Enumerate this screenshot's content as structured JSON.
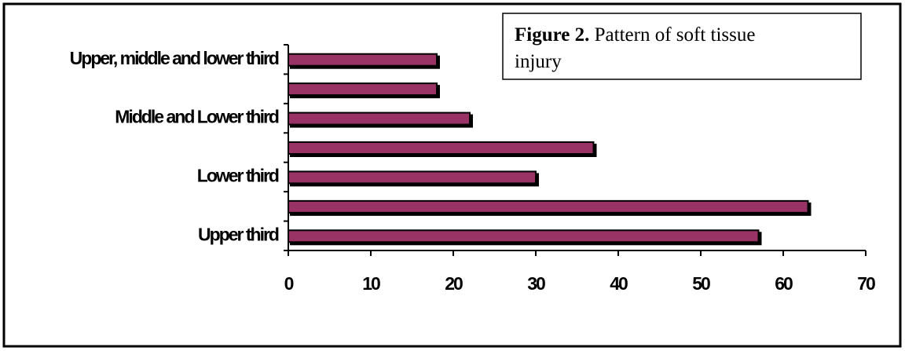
{
  "chart_data": {
    "type": "barh",
    "title_label": "Figure 2.",
    "title": "Pattern of soft tissue injury",
    "categories": [
      "Upper third",
      null,
      "Lower third",
      null,
      "Middle and Lower third",
      null,
      "Upper, middle and lower third"
    ],
    "values": [
      57,
      63,
      30,
      37,
      22,
      18,
      18
    ],
    "color": "#993366",
    "xlim": [
      0,
      70
    ],
    "xticks": [
      0,
      10,
      20,
      30,
      40,
      50,
      60,
      70
    ]
  }
}
